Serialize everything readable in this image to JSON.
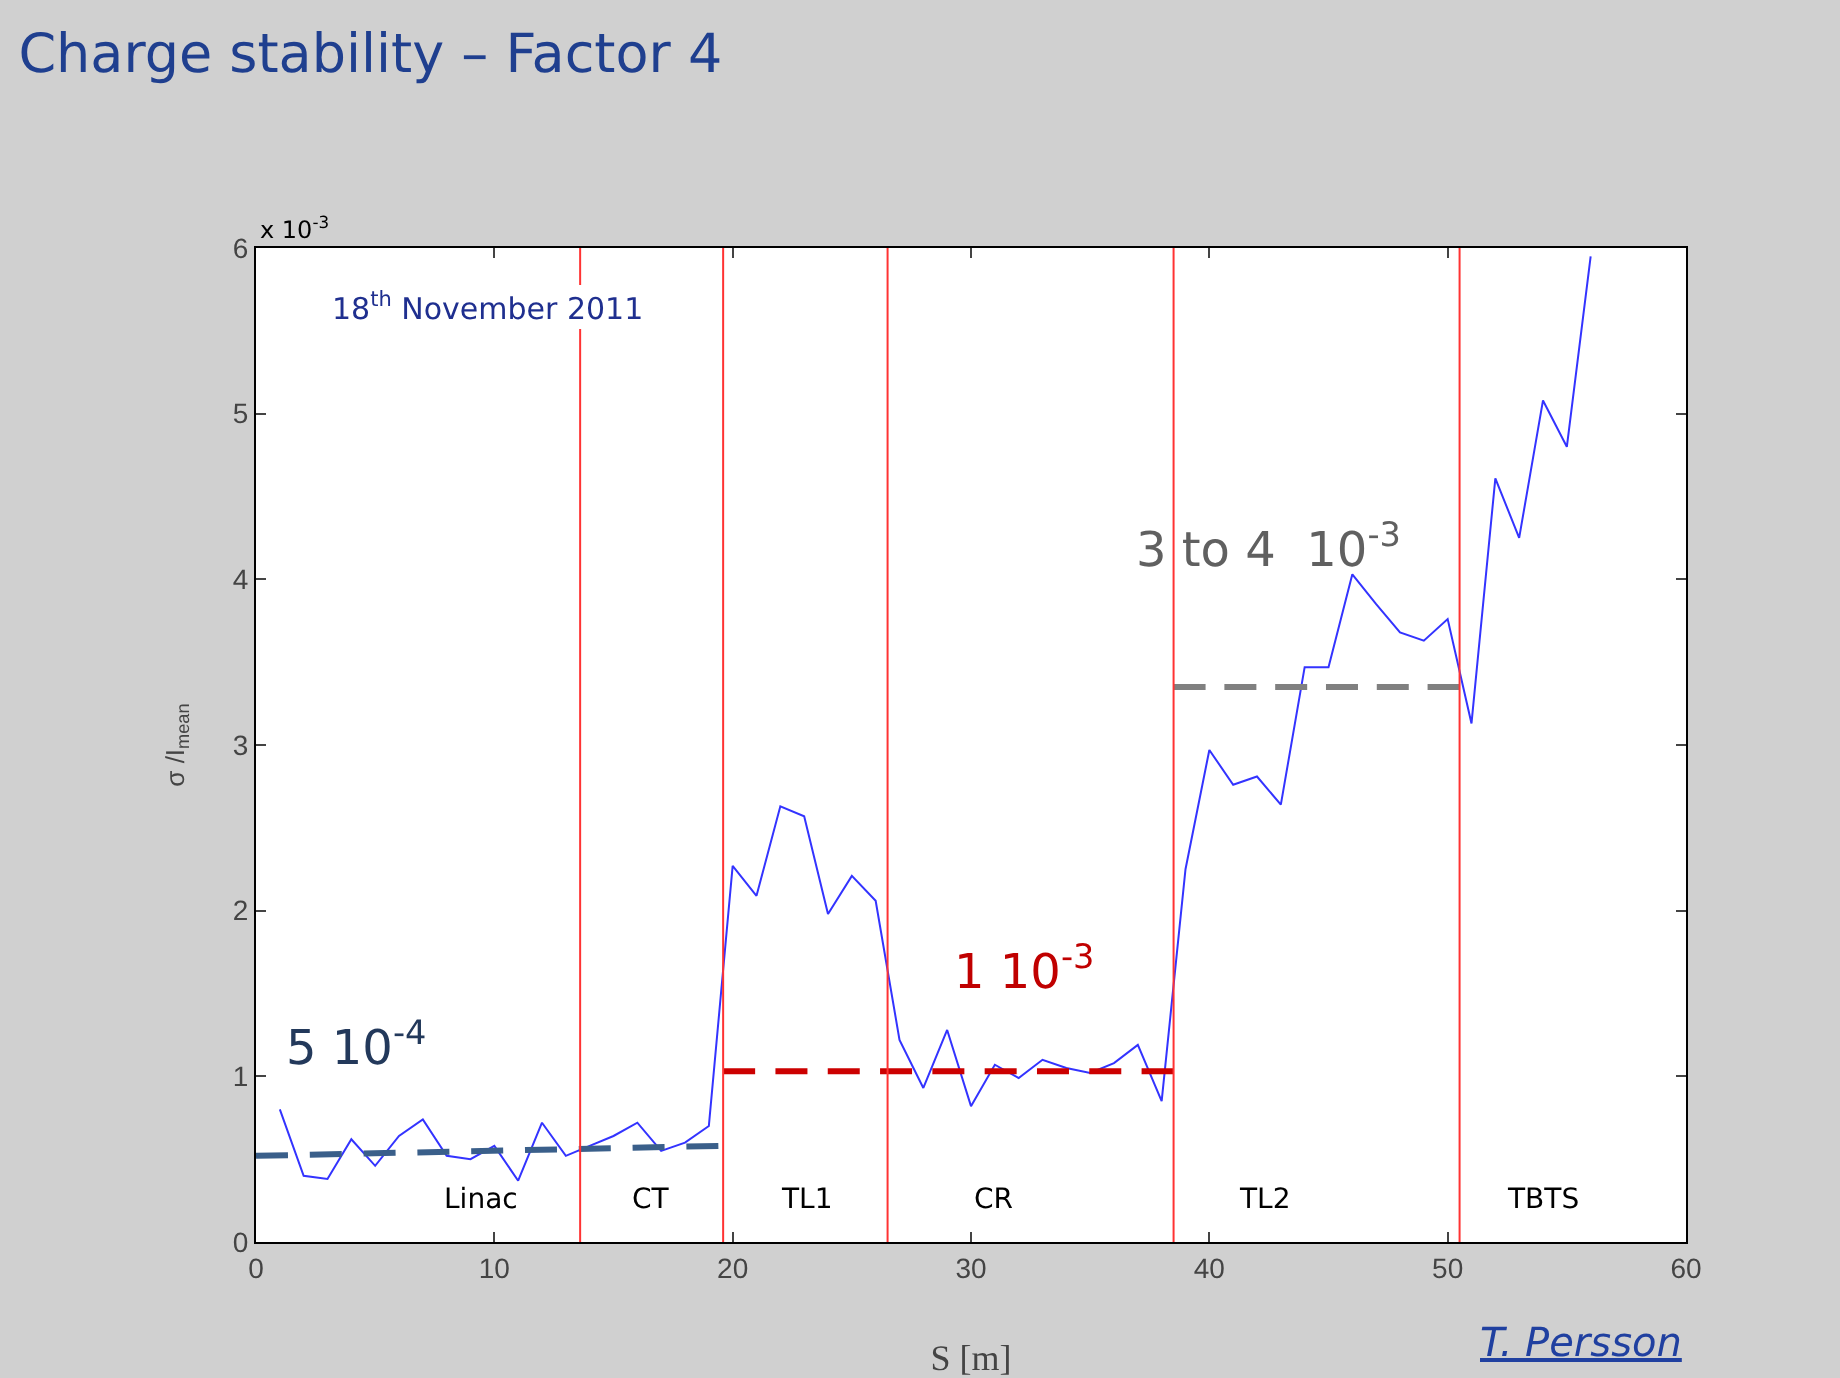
{
  "chart_data": {
    "type": "line",
    "title": "Charge stability – Factor 4",
    "xlabel": "S [m]",
    "ylabel": "σ /I$_{mean}$",
    "xlim": [
      0,
      60
    ],
    "xticks": [
      0,
      10,
      20,
      30,
      40,
      50,
      60
    ],
    "ylim": [
      0,
      6
    ],
    "yticks": [
      0,
      1,
      2,
      3,
      4,
      5,
      6
    ],
    "grid": false,
    "marker": "none",
    "series": [
      {
        "color": "#3333ff",
        "x": [
          1,
          2,
          3,
          4,
          5,
          6,
          7,
          8,
          9,
          10,
          11,
          12,
          13,
          14,
          15,
          16,
          17,
          18,
          19,
          20,
          21,
          22,
          23,
          24,
          25,
          26,
          27,
          28,
          29,
          30,
          31,
          32,
          33,
          34,
          35,
          36,
          37,
          38,
          39,
          40,
          41,
          42,
          43,
          44,
          45,
          46,
          47,
          48,
          49,
          50,
          51,
          52,
          53,
          54,
          55,
          56
        ],
        "values": [
          0.8,
          0.4,
          0.38,
          0.62,
          0.46,
          0.64,
          0.74,
          0.52,
          0.5,
          0.58,
          0.37,
          0.72,
          0.52,
          0.58,
          0.64,
          0.72,
          0.55,
          0.6,
          0.7,
          2.27,
          2.09,
          2.63,
          2.57,
          1.98,
          2.21,
          2.06,
          1.22,
          0.93,
          1.28,
          0.82,
          1.07,
          0.99,
          1.1,
          1.05,
          1.02,
          1.08,
          1.19,
          0.85,
          2.25,
          2.97,
          2.76,
          2.81,
          2.64,
          3.47,
          3.47,
          4.03,
          3.85,
          3.68,
          3.63,
          3.76,
          3.13,
          4.61,
          4.25,
          5.08,
          4.8,
          5.95
        ]
      },
      {
        "color": "#3a5f8a",
        "line_style": "dashed",
        "x": [
          0,
          19.4
        ],
        "values": [
          0.52,
          0.58
        ]
      },
      {
        "color": "#cc0000",
        "line_style": "dashed",
        "x": [
          19.6,
          38.5
        ],
        "values": [
          1.03,
          1.03
        ]
      },
      {
        "color": "#808080",
        "line_style": "dashed",
        "x": [
          38.5,
          50.5
        ],
        "values": [
          3.35,
          3.35
        ]
      }
    ],
    "ref_lines": [
      {
        "axis": "x",
        "value": 13.6,
        "color": "#ff3333"
      },
      {
        "axis": "x",
        "value": 19.6,
        "color": "#ff3333"
      },
      {
        "axis": "x",
        "value": 26.5,
        "color": "#ff3333"
      },
      {
        "axis": "x",
        "value": 38.5,
        "color": "#ff3333"
      },
      {
        "axis": "x",
        "value": 50.5,
        "color": "#ff3333"
      }
    ],
    "annotations": [
      "Linac",
      "CT",
      "TL1",
      "CR",
      "TL2",
      "TBTS",
      "5 10$^{-4}$",
      "1 10$^{-3}$",
      "3 to 4  10$^{-3}$",
      "18$^{th}$ November 2011",
      "x 10$^{-3}$",
      "T. Persson"
    ]
  }
}
